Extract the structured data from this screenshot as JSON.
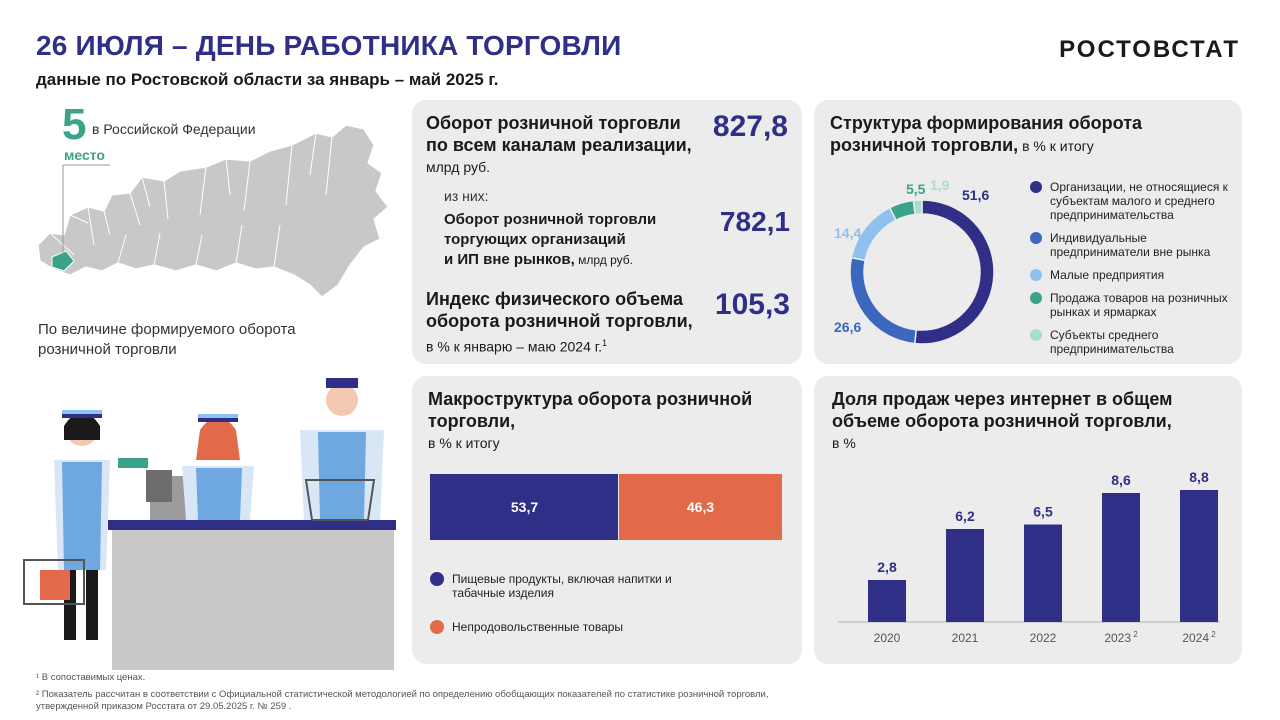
{
  "header": {
    "title": "26 ИЮЛЯ – ДЕНЬ РАБОТНИКА  ТОРГОВЛИ",
    "subtitle": "данные по Ростовской области за январь – май 2025 г.",
    "brand": "РОСТОВСТАТ"
  },
  "rank": {
    "number": "5",
    "text": "в Российской Федерации",
    "word": "место",
    "note": "По величине  формируемого оборота розничной  торговли"
  },
  "turnover": {
    "title_line1": "Оборот розничной торговли",
    "title_line2": "по всем каналам реализации,",
    "unit": "млрд руб.",
    "value": "827,8",
    "of_which": "из них:",
    "sub_line1": "Оборот розничной торговли",
    "sub_line2": "торгующих организаций",
    "sub_line3": "и ИП вне рынков,",
    "sub_unit": " млрд  руб.",
    "sub_value": "782,1",
    "index_line1": "Индекс физического объема",
    "index_line2": "оборота розничной торговли,",
    "index_unit": "в % к январю – маю 2024 г.",
    "index_sup": "1",
    "index_value": "105,3"
  },
  "structure": {
    "title_line1": "Структура формирования оборота",
    "title_line2": "розничной торговли,",
    "unit": " в % к итогу"
  },
  "macro": {
    "title_line1": "Макроструктура оборота розничной",
    "title_line2": "торговли,",
    "unit": "в % к итогу"
  },
  "internet": {
    "title_line1": "Доля продаж через интернет в общем",
    "title_line2": "объеме оборота розничной торговли,",
    "unit": "в %"
  },
  "chart_data": [
    {
      "type": "pie",
      "title": "Структура формирования оборота розничной торговли, в % к итогу",
      "categories": [
        "Организации, не относящиеся к субъектам малого и среднего предпринимательства",
        "Индивидуальные предприниматели вне рынка",
        "Малые предприятия",
        "Продажа товаров на розничных рынках и ярмарках",
        "Субъекты среднего предпринимательства"
      ],
      "values": [
        51.6,
        26.6,
        14.4,
        5.5,
        1.9
      ],
      "labels": [
        "51,6",
        "26,6",
        "14,4",
        "5,5",
        "1,9"
      ],
      "colors": [
        "#2f2f87",
        "#3b67bf",
        "#8ec0f0",
        "#3aa389",
        "#a8e0c6"
      ],
      "legend_text": [
        "Организации, не относящиеся к субъектам малого и среднего предпринимательства",
        "Индивидуальные предприниматели вне рынка",
        "Малые предприятия",
        "Продажа товаров на розничных рынках и ярмарках",
        "Субъекты среднего предпринимательства"
      ]
    },
    {
      "type": "bar",
      "title": "Макроструктура оборота розничной торговли, в % к итогу",
      "categories": [
        "Пищевые продукты, включая напитки и табачные изделия",
        "Непродовольственные товары"
      ],
      "values": [
        53.7,
        46.3
      ],
      "labels": [
        "53,7",
        "46,3"
      ],
      "colors": [
        "#2f2f87",
        "#e2694a"
      ]
    },
    {
      "type": "bar",
      "title": "Доля продаж через интернет в общем объеме оборота розничной торговли, в %",
      "categories": [
        "2020",
        "2021",
        "2022",
        "2023",
        "2024"
      ],
      "category_sups": [
        "",
        "",
        "",
        "2",
        "2"
      ],
      "values": [
        2.8,
        6.2,
        6.5,
        8.6,
        8.8
      ],
      "labels": [
        "2,8",
        "6,2",
        "6,5",
        "8,6",
        "8,8"
      ],
      "ylim": [
        0,
        10
      ],
      "color": "#2f2f87"
    }
  ],
  "footnotes": {
    "f1": "¹ В сопоставимых ценах.",
    "f2": "² Показатель рассчитан в соответствии с Официальной статистической методологией по определению обобщающих  показателей по статистике розничной  торговли,",
    "f3": "утвержденной приказом Росстата от 29.05.2025 г. № 259 ."
  }
}
